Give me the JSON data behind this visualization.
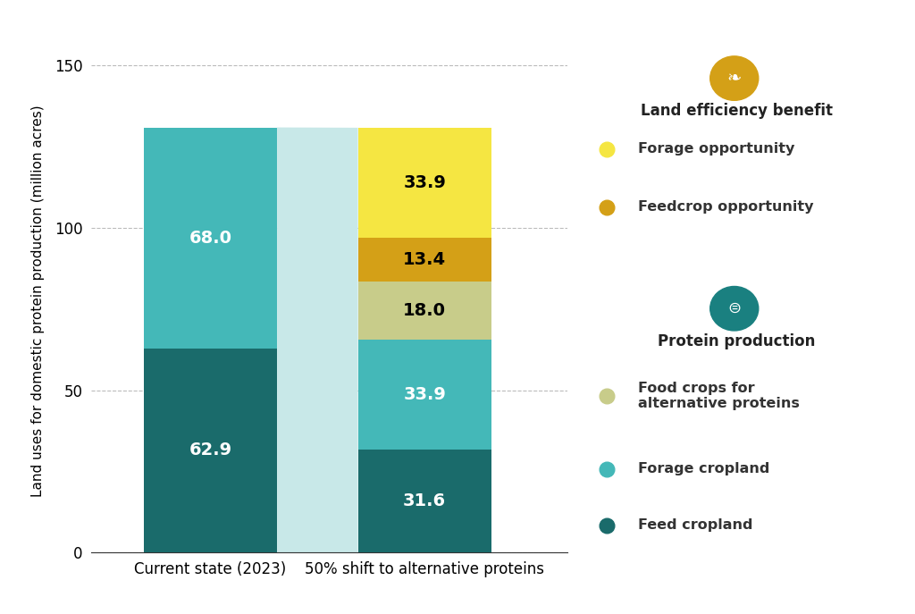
{
  "bar1_label": "Current state (2023)",
  "bar2_label": "50% shift to alternative proteins",
  "bar1_segments": [
    {
      "label": "Feed cropland",
      "value": 62.9,
      "color": "#1a6b6b"
    },
    {
      "label": "Forage cropland",
      "value": 68.0,
      "color": "#44b8b8"
    }
  ],
  "bar2_segments": [
    {
      "label": "Feed cropland",
      "value": 31.6,
      "color": "#1a6b6b"
    },
    {
      "label": "Forage cropland",
      "value": 33.9,
      "color": "#44b8b8"
    },
    {
      "label": "Food crops for alternative proteins",
      "value": 18.0,
      "color": "#c8cc8a"
    },
    {
      "label": "Feedcrop opportunity",
      "value": 13.4,
      "color": "#d4a017"
    },
    {
      "label": "Forage opportunity",
      "value": 33.9,
      "color": "#f5e642"
    }
  ],
  "connector_color": "#c8e8e8",
  "bar1_total": 130.9,
  "bar2_total": 130.8,
  "ylabel": "Land uses for domestic protein production (million acres)",
  "yticks": [
    0,
    50,
    100,
    150
  ],
  "ylim": [
    0,
    155
  ],
  "background_color": "#ffffff",
  "grid_color": "#bbbbbb",
  "legend_land_efficiency_title": "Land efficiency benefit",
  "legend_protein_title": "Protein production",
  "legend_land_items": [
    {
      "label": "Forage opportunity",
      "color": "#f5e642"
    },
    {
      "label": "Feedcrop opportunity",
      "color": "#d4a017"
    }
  ],
  "legend_protein_items": [
    {
      "label": "Food crops for\nalternative proteins",
      "color": "#c8cc8a"
    },
    {
      "label": "Forage cropland",
      "color": "#44b8b8"
    },
    {
      "label": "Feed cropland",
      "color": "#1a6b6b"
    }
  ],
  "land_icon_color": "#d4a017",
  "protein_icon_color": "#1a8080",
  "bar1_text_colors": [
    "white",
    "white"
  ],
  "bar2_text_colors": [
    "white",
    "white",
    "black",
    "black",
    "black"
  ],
  "figsize": [
    10.24,
    6.87
  ],
  "dpi": 100
}
